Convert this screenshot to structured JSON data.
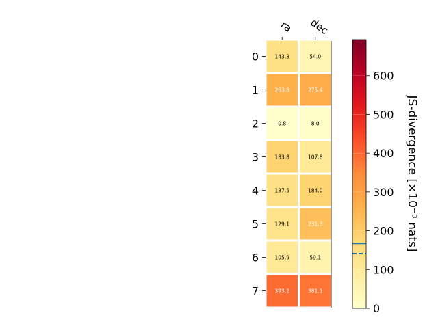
{
  "chart_data": {
    "type": "heatmap",
    "columns": [
      "ra",
      "dec"
    ],
    "rows": [
      "0",
      "1",
      "2",
      "3",
      "4",
      "5",
      "6",
      "7"
    ],
    "values": [
      [
        143.3,
        54.0
      ],
      [
        263.8,
        275.4
      ],
      [
        0.8,
        8.0
      ],
      [
        183.8,
        107.8
      ],
      [
        137.5,
        184.0
      ],
      [
        129.1,
        231.3
      ],
      [
        105.9,
        59.1
      ],
      [
        393.2,
        381.1
      ]
    ],
    "cell_labels": [
      [
        "143.3",
        "54.0"
      ],
      [
        "263.8",
        "275.4"
      ],
      [
        "0.8",
        "8.0"
      ],
      [
        "183.8",
        "107.8"
      ],
      [
        "137.5",
        "184.0"
      ],
      [
        "129.1",
        "231.3"
      ],
      [
        "105.9",
        "59.1"
      ],
      [
        "393.2",
        "381.1"
      ]
    ],
    "colormap": "YlOrRd",
    "colorbar": {
      "label": "JS-divergence [×10⁻³ nats]",
      "range": [
        0,
        693
      ],
      "ticks": [
        0,
        100,
        200,
        300,
        400,
        500,
        600
      ],
      "tick_labels": [
        "0",
        "100",
        "200",
        "300",
        "400",
        "500",
        "600"
      ],
      "markers": [
        {
          "value": 167,
          "style": "solid",
          "color": "#1f77b4"
        },
        {
          "value": 141,
          "style": "dashed",
          "color": "#1f77b4"
        }
      ]
    },
    "grid": false,
    "legend": "none"
  }
}
